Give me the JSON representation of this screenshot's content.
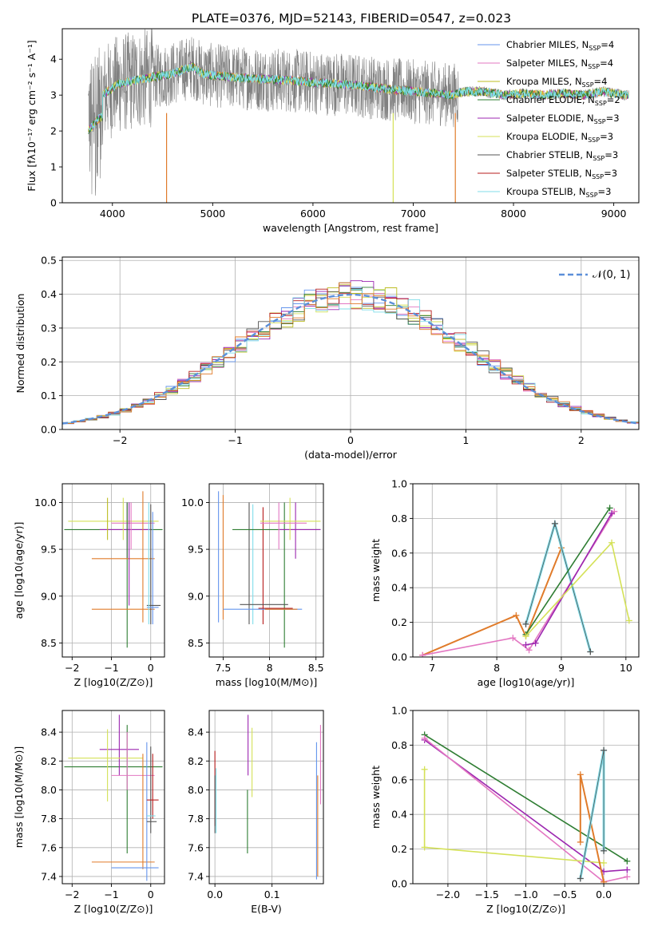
{
  "title": "PLATE=0376, MJD=52143, FIBERID=0547, z=0.023",
  "colors": {
    "Chabrier MILES": "#6495ed",
    "Salpeter MILES": "#e377c2",
    "Kroupa MILES": "#bcbd22",
    "Chabrier ELODIE": "#2e7d32",
    "Salpeter ELODIE": "#9c27b0",
    "Kroupa ELODIE": "#d4e157",
    "Chabrier STELIB": "#555555",
    "Salpeter STELIB": "#b71c1c",
    "Kroupa STELIB": "#80deea",
    "data": "#808080",
    "orange": "#e07b2a",
    "normal": "#5b8fd9"
  },
  "chart_data": [
    {
      "id": "spectrum",
      "type": "line",
      "xlabel": "wavelength [Angstrom, rest frame]",
      "ylabel": "Flux [fλ10⁻¹⁷ erg cm⁻² s⁻¹ A⁻¹]",
      "xlim": [
        3500,
        9250
      ],
      "ylim": [
        0,
        4.85
      ],
      "xticks": [
        4000,
        5000,
        6000,
        7000,
        8000,
        9000
      ],
      "yticks": [
        0,
        1,
        2,
        3,
        4
      ],
      "legend_position": "top-right",
      "legend": [
        {
          "label": "Chabrier MILES, N",
          "sub": "SSP",
          "n": "=4"
        },
        {
          "label": "Salpeter MILES, N",
          "sub": "SSP",
          "n": "=4"
        },
        {
          "label": "Kroupa MILES, N",
          "sub": "SSP",
          "n": "=4"
        },
        {
          "label": "Chabrier ELODIE, N",
          "sub": "SSP",
          "n": "=2"
        },
        {
          "label": "Salpeter ELODIE, N",
          "sub": "SSP",
          "n": "=3"
        },
        {
          "label": "Kroupa ELODIE, N",
          "sub": "SSP",
          "n": "=3"
        },
        {
          "label": "Chabrier STELIB, N",
          "sub": "SSP",
          "n": "=3"
        },
        {
          "label": "Salpeter STELIB, N",
          "sub": "SSP",
          "n": "=3"
        },
        {
          "label": "Kroupa STELIB, N",
          "sub": "SSP",
          "n": "=3"
        }
      ],
      "continuum": [
        [
          3760,
          2.6
        ],
        [
          3850,
          2.9
        ],
        [
          3950,
          3.1
        ],
        [
          4050,
          3.3
        ],
        [
          4200,
          3.4
        ],
        [
          4400,
          3.5
        ],
        [
          4600,
          3.6
        ],
        [
          4800,
          3.8
        ],
        [
          4900,
          3.6
        ],
        [
          5000,
          3.55
        ],
        [
          5200,
          3.5
        ],
        [
          5500,
          3.45
        ],
        [
          5800,
          3.4
        ],
        [
          6000,
          3.35
        ],
        [
          6300,
          3.3
        ],
        [
          6500,
          3.25
        ],
        [
          6800,
          3.15
        ],
        [
          7000,
          3.1
        ],
        [
          7200,
          3.05
        ],
        [
          7400,
          3.0
        ],
        [
          7500,
          3.1
        ],
        [
          7700,
          3.1
        ],
        [
          7900,
          3.0
        ],
        [
          8100,
          3.05
        ],
        [
          8300,
          3.0
        ],
        [
          8500,
          3.05
        ],
        [
          8700,
          3.0
        ],
        [
          8900,
          3.1
        ],
        [
          9100,
          3.0
        ]
      ]
    },
    {
      "id": "residuals",
      "type": "histogram",
      "xlabel": "(data-model)/error",
      "ylabel": "Normed distribution",
      "xlim": [
        -2.5,
        2.5
      ],
      "ylim": [
        0,
        0.51
      ],
      "xticks": [
        -2,
        -1,
        0,
        1,
        2
      ],
      "yticks": [
        0.0,
        0.1,
        0.2,
        0.3,
        0.4,
        0.5
      ],
      "grid": true,
      "legend_position": "top-right",
      "legend": "N(0, 1)"
    },
    {
      "id": "age_vs_Z",
      "type": "errorbar",
      "xlabel": "Z [log10(Z/Z⊙)]",
      "ylabel": "age [log10(age/yr)]",
      "xlim": [
        -2.25,
        0.35
      ],
      "ylim": [
        8.35,
        10.2
      ],
      "xticks": [
        -2,
        -1,
        0
      ],
      "yticks": [
        8.5,
        9.0,
        9.5,
        10.0
      ],
      "grid": true
    },
    {
      "id": "age_vs_mass",
      "type": "errorbar",
      "xlabel": "mass [log10(M/M⊙)]",
      "xlim": [
        7.35,
        8.58
      ],
      "ylim": [
        8.35,
        10.2
      ],
      "xticks": [
        7.5,
        8.0,
        8.5
      ],
      "yticks": [
        8.5,
        9.0,
        9.5,
        10.0
      ],
      "grid": true
    },
    {
      "id": "weight_vs_age",
      "type": "line",
      "xlabel": "age [log10(age/yr)]",
      "ylabel": "mass weight",
      "xlim": [
        6.7,
        10.2
      ],
      "ylim": [
        0,
        1.0
      ],
      "xticks": [
        7,
        8,
        9,
        10
      ],
      "yticks": [
        0.0,
        0.2,
        0.4,
        0.6,
        0.8,
        1.0
      ],
      "grid": true
    },
    {
      "id": "mass_vs_Z",
      "type": "errorbar",
      "xlabel": "Z [log10(Z/Z⊙)]",
      "ylabel": "mass [log10(M/M⊙)]",
      "xlim": [
        -2.25,
        0.35
      ],
      "ylim": [
        7.35,
        8.55
      ],
      "xticks": [
        -2,
        -1,
        0
      ],
      "yticks": [
        7.4,
        7.6,
        7.8,
        8.0,
        8.2,
        8.4
      ],
      "grid": true
    },
    {
      "id": "mass_vs_EBV",
      "type": "errorbar",
      "xlabel": "E(B-V)",
      "xlim": [
        -0.01,
        0.19
      ],
      "ylim": [
        7.35,
        8.55
      ],
      "xticks": [
        0.0,
        0.1
      ],
      "yticks": [
        7.4,
        7.6,
        7.8,
        8.0,
        8.2,
        8.4
      ],
      "grid": true
    },
    {
      "id": "weight_vs_Z",
      "type": "line",
      "xlabel": "Z [log10(Z/Z⊙)]",
      "ylabel": "mass weight",
      "xlim": [
        -2.45,
        0.45
      ],
      "ylim": [
        0,
        1.0
      ],
      "xticks": [
        -2.0,
        -1.5,
        -1.0,
        -0.5,
        0.0
      ],
      "yticks": [
        0.0,
        0.2,
        0.4,
        0.6,
        0.8,
        1.0
      ],
      "grid": true
    }
  ],
  "series_models": [
    {
      "name": "Chabrier MILES",
      "color": "#6495ed",
      "age": [
        6.85,
        8.3,
        8.45,
        9.0
      ],
      "Z": [
        -1.0,
        -0.3,
        -0.3,
        0.0
      ],
      "mass": [
        7.46,
        7.6,
        7.7,
        7.8
      ],
      "w": [
        0.01,
        0.24,
        0.12,
        0.63
      ]
    },
    {
      "name": "Salpeter MILES",
      "color": "#e377c2",
      "age": [
        6.85,
        8.25,
        8.5,
        9.82
      ],
      "Z": [
        0.0,
        -0.3,
        0.3,
        -2.3
      ],
      "mass": [
        7.5,
        7.6,
        8.1,
        8.35
      ],
      "w": [
        0.01,
        0.11,
        0.04,
        0.84
      ]
    },
    {
      "name": "Kroupa MILES",
      "color": "#bcbd22",
      "age": [
        6.85,
        8.3,
        8.45,
        9.0
      ],
      "Z": [
        0.0,
        -0.3,
        -0.3,
        -0.3
      ],
      "mass": [
        7.5,
        7.6,
        7.7,
        7.8
      ],
      "w": [
        0.01,
        0.24,
        0.12,
        0.63
      ]
    },
    {
      "name": "Chabrier ELODIE",
      "color": "#2e7d32",
      "age": [
        8.45,
        9.75
      ],
      "Z": [
        0.3,
        -2.3
      ],
      "mass": [
        7.8,
        8.16
      ],
      "w": [
        0.13,
        0.86
      ]
    },
    {
      "name": "Salpeter ELODIE",
      "color": "#9c27b0",
      "age": [
        8.45,
        8.6,
        9.78
      ],
      "Z": [
        0.0,
        0.3,
        -2.3
      ],
      "mass": [
        7.7,
        7.8,
        8.28
      ],
      "w": [
        0.07,
        0.08,
        0.83
      ]
    },
    {
      "name": "Kroupa ELODIE",
      "color": "#d4e157",
      "age": [
        8.45,
        9.78,
        10.05
      ],
      "Z": [
        0.0,
        -2.3,
        -2.3
      ],
      "mass": [
        7.6,
        8.22,
        7.9
      ],
      "w": [
        0.12,
        0.66,
        0.21
      ]
    },
    {
      "name": "Chabrier STELIB",
      "color": "#555555",
      "age": [
        8.45,
        8.9,
        9.45
      ],
      "Z": [
        0.0,
        0.0,
        -0.3
      ],
      "mass": [
        7.78,
        8.18,
        7.82
      ],
      "w": [
        0.19,
        0.77,
        0.03
      ]
    },
    {
      "name": "Salpeter STELIB",
      "color": "#b71c1c",
      "age": [
        8.45,
        8.9,
        9.45
      ],
      "Z": [
        0.0,
        0.0,
        -0.3
      ],
      "mass": [
        7.93,
        8.22,
        7.85
      ],
      "w": [
        0.19,
        0.77,
        0.03
      ]
    },
    {
      "name": "Kroupa STELIB",
      "color": "#80deea",
      "age": [
        8.45,
        8.9,
        9.45
      ],
      "Z": [
        0.0,
        0.0,
        -0.3
      ],
      "mass": [
        7.82,
        8.2,
        7.83
      ],
      "w": [
        0.19,
        0.77,
        0.03
      ]
    }
  ]
}
